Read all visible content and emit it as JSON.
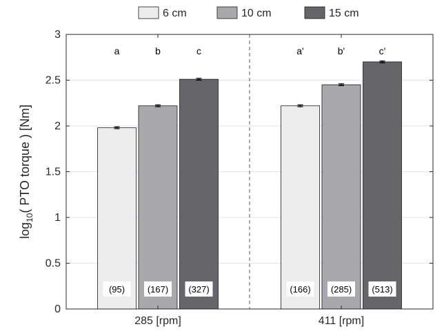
{
  "chart_data": {
    "type": "bar",
    "ylabel_prefix": "log",
    "ylabel_subscript": "10",
    "ylabel_suffix": "( PTO torque ) [Nm]",
    "xlabel": "",
    "ylim": [
      0,
      3
    ],
    "yticks": [
      0,
      0.5,
      1,
      1.5,
      2,
      2.5,
      3
    ],
    "ytick_labels": [
      "0",
      "0.5",
      "1",
      "1.5",
      "2",
      "2.5",
      "3"
    ],
    "grid": "horizontal",
    "legend_position": "top",
    "categories": [
      "285 [rpm]",
      "411 [rpm]"
    ],
    "series": [
      {
        "name": "6 cm",
        "color": "#ececec",
        "values": [
          1.98,
          2.22
        ],
        "errors": [
          0.01,
          0.01
        ],
        "letters": [
          "a",
          "a'"
        ],
        "counts": [
          "(95)",
          "(166)"
        ]
      },
      {
        "name": "10 cm",
        "color": "#a9a9ad",
        "values": [
          2.22,
          2.45
        ],
        "errors": [
          0.01,
          0.01
        ],
        "letters": [
          "b",
          "b'"
        ],
        "counts": [
          "(167)",
          "(285)"
        ]
      },
      {
        "name": "15 cm",
        "color": "#66666a",
        "values": [
          2.51,
          2.7
        ],
        "errors": [
          0.01,
          0.01
        ],
        "letters": [
          "c",
          "c'"
        ],
        "counts": [
          "(327)",
          "(513)"
        ]
      }
    ]
  }
}
